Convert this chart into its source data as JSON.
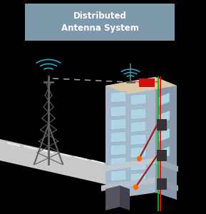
{
  "bg_color": "#000000",
  "title_box_color": "#7d98a8",
  "title_text": "Distributed\nAntenna System",
  "title_text_color": "#ffffff",
  "road_color": "#c8c8c8",
  "road_edge_color": "#b0b0b0",
  "road_dash_color": "#e8e8e8",
  "building_front_color": "#a8b8c8",
  "building_side_color": "#8898a8",
  "building_roof_color": "#d8c8a8",
  "building_ledge1_color": "#c0c8d0",
  "building_ledge1_side_color": "#9aaab5",
  "building_ledge2_color": "#b8c0cc",
  "building_ledge2_side_color": "#909aaa",
  "window_color": "#b0d4e4",
  "window_border_color": "#80a8c0",
  "cable_red": "#ff0000",
  "cable_green": "#00bb00",
  "cable_black": "#333333",
  "antenna_color": "#606060",
  "signal_color": "#22aacc",
  "splitter_color": "#cc1111",
  "node_color": "#333333",
  "small_dot_color": "#ff6600",
  "dash_color": "#999999",
  "base_box_color": "#555560",
  "base_box_side_color": "#404050"
}
